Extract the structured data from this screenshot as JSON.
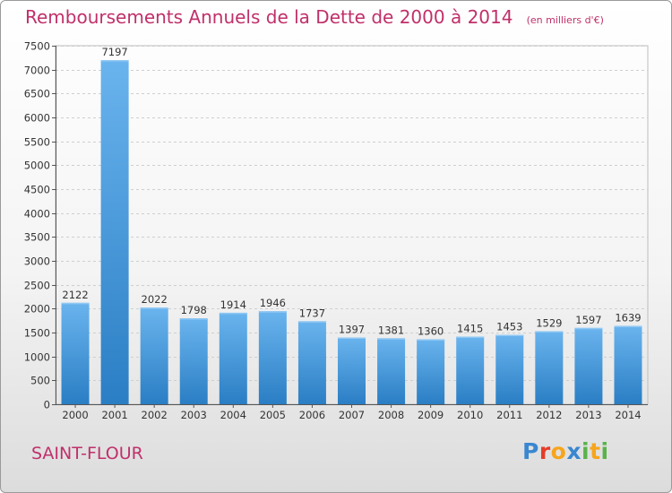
{
  "header": {
    "title": "Remboursements Annuels de la Dette de 2000 à 2014",
    "unit": "(en milliers d'€)"
  },
  "footer": {
    "commune": "SAINT-FLOUR",
    "logo": "Proxiti"
  },
  "colors": {
    "accent": "#c0306a",
    "bar_top": "#6ab4ee",
    "bar_bottom": "#2a7ec4"
  },
  "chart_data": {
    "type": "bar",
    "categories": [
      "2000",
      "2001",
      "2002",
      "2003",
      "2004",
      "2005",
      "2006",
      "2007",
      "2008",
      "2009",
      "2010",
      "2011",
      "2012",
      "2013",
      "2014"
    ],
    "values": [
      2122,
      7197,
      2022,
      1798,
      1914,
      1946,
      1737,
      1397,
      1381,
      1360,
      1415,
      1453,
      1529,
      1597,
      1639
    ],
    "title": "Remboursements Annuels de la Dette de 2000 à 2014",
    "ylim": [
      0,
      7500
    ],
    "yticks": [
      0,
      500,
      1000,
      1500,
      2000,
      2500,
      3000,
      3500,
      4000,
      4500,
      5000,
      5500,
      6000,
      6500,
      7000,
      7500
    ],
    "grid": true,
    "data_labels": true
  }
}
